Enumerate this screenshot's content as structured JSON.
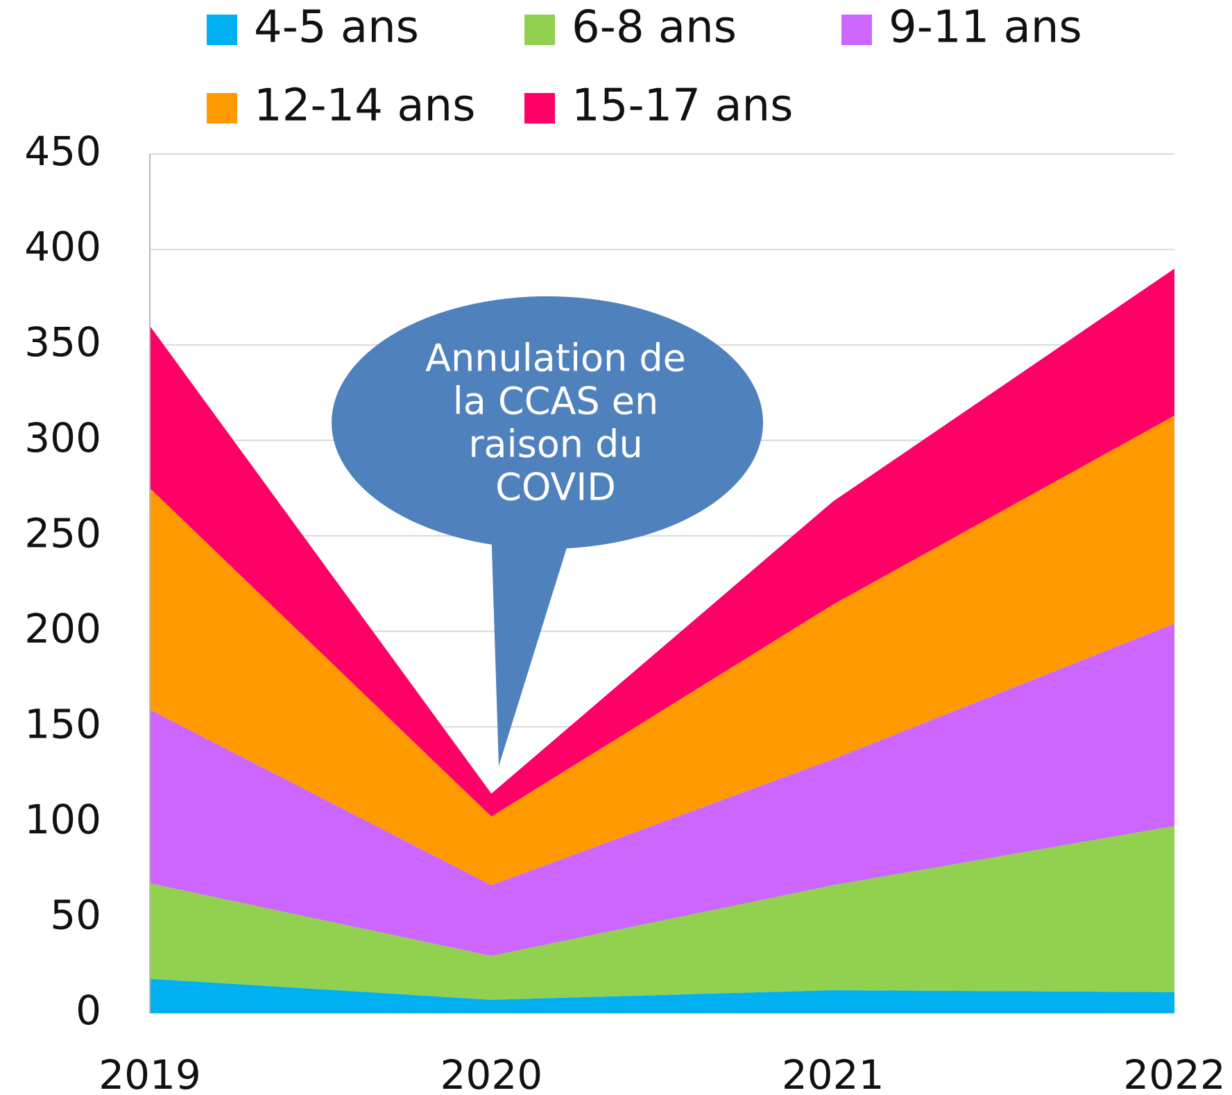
{
  "chart_data": {
    "type": "stacked_area",
    "categories": [
      "2019",
      "2020",
      "2021",
      "2022"
    ],
    "series": [
      {
        "name": "4-5 ans",
        "color": "#00b0f0",
        "values": [
          18,
          7,
          12,
          11
        ]
      },
      {
        "name": "6-8 ans",
        "color": "#92d050",
        "values": [
          50,
          23,
          55,
          87
        ]
      },
      {
        "name": "9-11 ans",
        "color": "#cc66ff",
        "values": [
          91,
          37,
          66,
          106
        ]
      },
      {
        "name": "12-14 ans",
        "color": "#ff9900",
        "values": [
          116,
          36,
          81,
          109
        ]
      },
      {
        "name": "15-17 ans",
        "color": "#ff0066",
        "values": [
          85,
          12,
          54,
          77
        ]
      }
    ],
    "ylim": [
      0,
      450
    ],
    "yticks": [
      0,
      50,
      100,
      150,
      200,
      250,
      300,
      350,
      400,
      450
    ],
    "grid": true,
    "annotation": [
      "Annulation de",
      "la CCAS  en",
      "raison du",
      "COVID"
    ]
  }
}
